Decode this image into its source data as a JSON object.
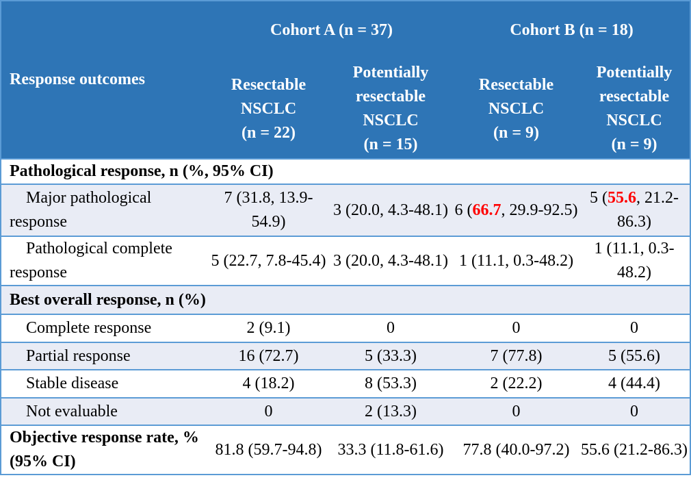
{
  "header": {
    "row_label": "Response outcomes",
    "cohort_a": "Cohort A (n = 37)",
    "cohort_b": "Cohort B (n = 18)",
    "subcols": [
      {
        "line1": "Resectable",
        "line2": "NSCLC",
        "line3": "(n = 22)"
      },
      {
        "line1": "Potentially",
        "line2": "resectable",
        "line3": "NSCLC",
        "line4": "(n = 15)"
      },
      {
        "line1": "Resectable",
        "line2": "NSCLC",
        "line3": "(n = 9)"
      },
      {
        "line1": "Potentially",
        "line2": "resectable",
        "line3": "NSCLC",
        "line4": "(n = 9)"
      }
    ]
  },
  "sections": {
    "pathological": "Pathological response, n (%, 95% CI)",
    "best_overall": "Best overall response, n (%)"
  },
  "rows": {
    "mpr": {
      "label": "Major pathological response",
      "c1": "7 (31.8, 13.9-54.9)",
      "c2": "3 (20.0, 4.3-48.1)",
      "c3_pre": "6 (",
      "c3_hl": "66.7",
      "c3_post": ", 29.9-92.5)",
      "c4_pre": "5 (",
      "c4_hl": "55.6",
      "c4_post": ", 21.2-86.3)"
    },
    "pcr": {
      "label": "Pathological complete response",
      "c1": "5 (22.7, 7.8-45.4)",
      "c2": "3 (20.0, 4.3-48.1)",
      "c3": "1 (11.1, 0.3-48.2)",
      "c4": "1 (11.1, 0.3-48.2)"
    },
    "cr": {
      "label": "Complete response",
      "c1": "2 (9.1)",
      "c2": "0",
      "c3": "0",
      "c4": "0"
    },
    "pr": {
      "label": "Partial response",
      "c1": "16 (72.7)",
      "c2": "5 (33.3)",
      "c3": "7 (77.8)",
      "c4": "5 (55.6)"
    },
    "sd": {
      "label": "Stable disease",
      "c1": "4 (18.2)",
      "c2": "8 (53.3)",
      "c3": "2 (22.2)",
      "c4": "4 (44.4)"
    },
    "ne": {
      "label": "Not evaluable",
      "c1": "0",
      "c2": "2 (13.3)",
      "c3": "0",
      "c4": "0"
    },
    "orr": {
      "label": "Objective response rate, % (95% CI)",
      "c1": "81.8 (59.7-94.8)",
      "c2": "33.3 (11.8-61.6)",
      "c3": "77.8 (40.0-97.2)",
      "c4": "55.6 (21.2-86.3)"
    }
  },
  "colors": {
    "header_bg": "#2e75b6",
    "shade": "#e9ecf5",
    "border": "#5b9bd5",
    "highlight": "#ff0000"
  }
}
